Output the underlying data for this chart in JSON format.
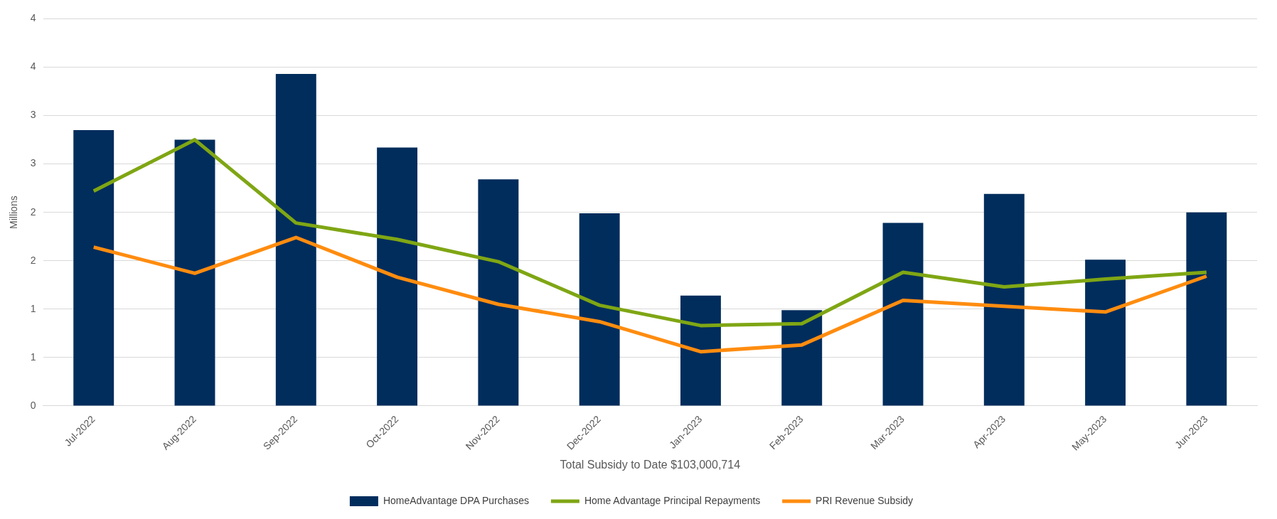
{
  "chart_data": {
    "type": "bar",
    "xlabel": "Total Subsidy to Date $103,000,714",
    "ylabel": "Millions",
    "categories": [
      "Jul-2022",
      "Aug-2022",
      "Sep-2022",
      "Oct-2022",
      "Nov-2022",
      "Dec-2022",
      "Jan-2023",
      "Feb-2023",
      "Mar-2023",
      "Apr-2023",
      "May-2023",
      "Jun-2023"
    ],
    "series": [
      {
        "name": "HomeAdvantage DPA Purchases",
        "color": "#002d5c",
        "values": [
          2.85,
          2.75,
          3.43,
          2.67,
          2.34,
          1.99,
          1.14,
          0.99,
          1.89,
          2.19,
          1.51,
          2.0
        ]
      },
      {
        "name": "Home Advantage Principal Repayments",
        "type": "line",
        "color": "#7fa614",
        "values": [
          2.22,
          2.75,
          1.89,
          1.72,
          1.49,
          1.04,
          0.83,
          0.85,
          1.38,
          1.23,
          1.31,
          1.38
        ]
      },
      {
        "name": "PRI Revenue Subsidy",
        "type": "line",
        "color": "#ff8c0f",
        "values": [
          1.64,
          1.37,
          1.74,
          1.33,
          1.05,
          0.87,
          0.56,
          0.63,
          1.09,
          1.03,
          0.97,
          1.34
        ]
      }
    ],
    "ylim": [
      0,
      4
    ],
    "yticks": [
      0,
      {
        "value": 0.5,
        "label": "1"
      },
      1,
      {
        "value": 1.5,
        "label": "2"
      },
      2,
      {
        "value": 2.5,
        "label": "3"
      },
      3,
      {
        "value": 3.5,
        "label": "4"
      },
      4
    ],
    "grid": "y",
    "legend": "bottom"
  }
}
